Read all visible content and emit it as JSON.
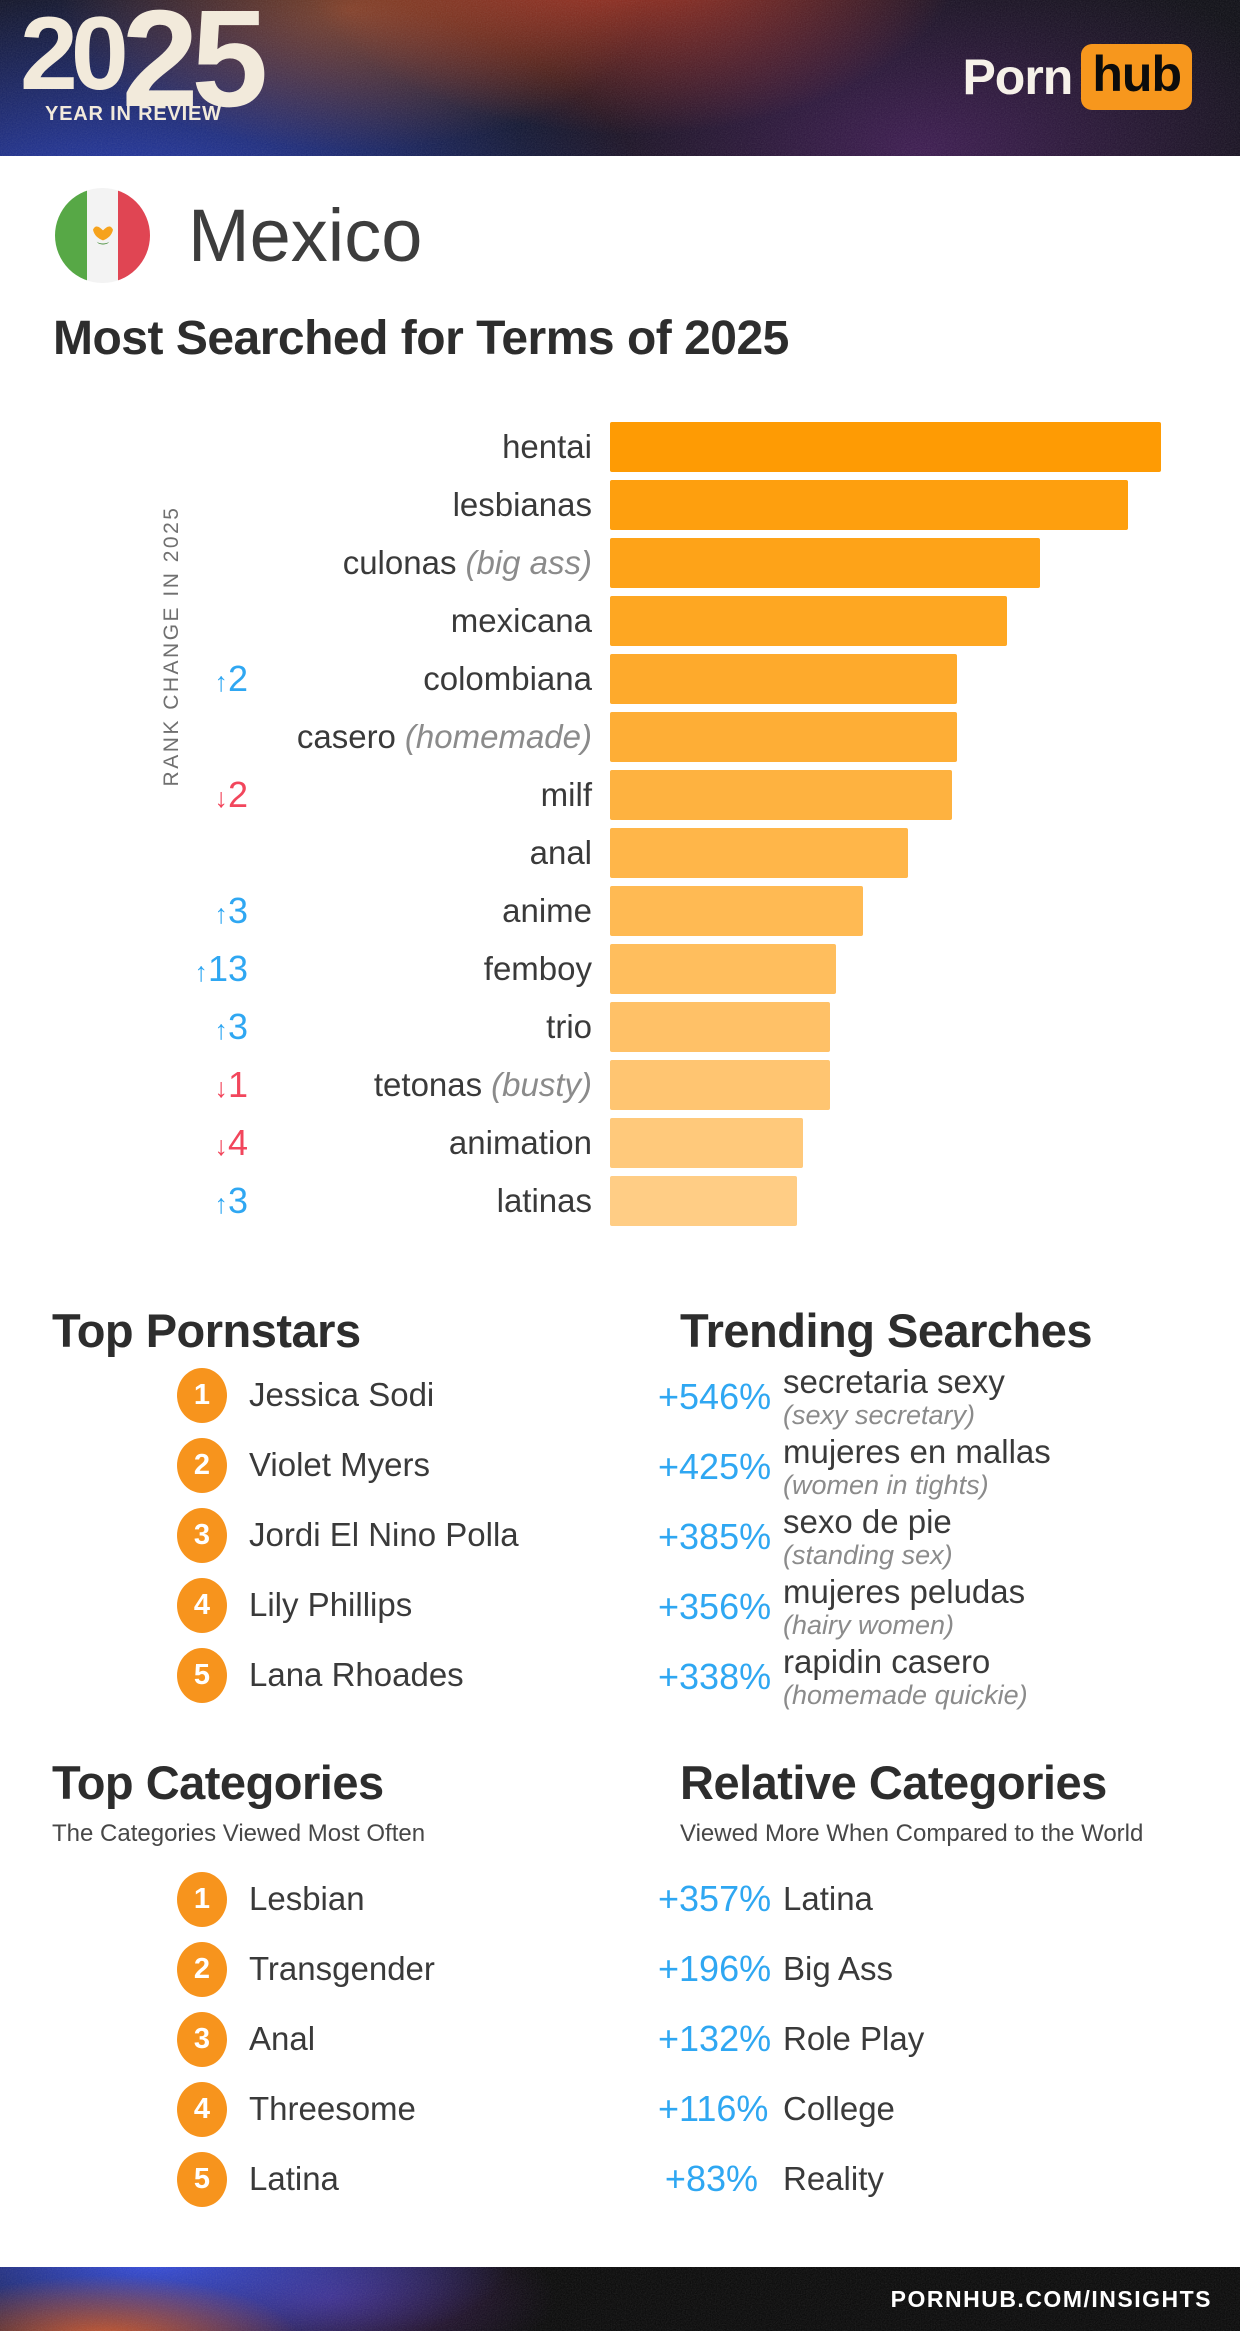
{
  "header": {
    "year_first": "20",
    "year_second": "25",
    "tagline": "YEAR IN REVIEW",
    "brand_first": "Porn",
    "brand_second": "hub"
  },
  "country": {
    "name": "Mexico"
  },
  "page_title": "Most Searched for Terms of 2025",
  "chart_data": {
    "type": "bar",
    "orientation": "horizontal",
    "title": "Most Searched for Terms of 2025",
    "axis_label": "RANK CHANGE IN 2025",
    "value_unit": "relative search volume (top term = 100)",
    "bar_color_top": "#FE9B04",
    "bar_color_bottom": "#FFCD85",
    "rank_up_color": "#2FA7F2",
    "rank_down_color": "#F2465C",
    "categories": [
      "hentai",
      "lesbianas",
      "culonas",
      "mexicana",
      "colombiana",
      "casero",
      "milf",
      "anal",
      "anime",
      "femboy",
      "trio",
      "tetonas",
      "animation",
      "latinas"
    ],
    "values": [
      100,
      94,
      78,
      72,
      63,
      63,
      62,
      54,
      46,
      41,
      40,
      40,
      35,
      34
    ],
    "items": [
      {
        "term": "hentai",
        "translation": "",
        "rank_change": "",
        "value": 100
      },
      {
        "term": "lesbianas",
        "translation": "",
        "rank_change": "",
        "value": 94
      },
      {
        "term": "culonas",
        "translation": "(big ass)",
        "rank_change": "",
        "value": 78
      },
      {
        "term": "mexicana",
        "translation": "",
        "rank_change": "",
        "value": 72
      },
      {
        "term": "colombiana",
        "translation": "",
        "rank_change": "↑2",
        "value": 63
      },
      {
        "term": "casero",
        "translation": "(homemade)",
        "rank_change": "",
        "value": 63
      },
      {
        "term": "milf",
        "translation": "",
        "rank_change": "↓2",
        "value": 62
      },
      {
        "term": "anal",
        "translation": "",
        "rank_change": "",
        "value": 54
      },
      {
        "term": "anime",
        "translation": "",
        "rank_change": "↑3",
        "value": 46
      },
      {
        "term": "femboy",
        "translation": "",
        "rank_change": "↑13",
        "value": 41
      },
      {
        "term": "trio",
        "translation": "",
        "rank_change": "↑3",
        "value": 40
      },
      {
        "term": "tetonas",
        "translation": "(busty)",
        "rank_change": "↓1",
        "value": 40
      },
      {
        "term": "animation",
        "translation": "",
        "rank_change": "↓4",
        "value": 35
      },
      {
        "term": "latinas",
        "translation": "",
        "rank_change": "↑3",
        "value": 34
      }
    ]
  },
  "top_pornstars": {
    "title": "Top Pornstars",
    "items": [
      {
        "rank": 1,
        "name": "Jessica Sodi"
      },
      {
        "rank": 2,
        "name": "Violet Myers"
      },
      {
        "rank": 3,
        "name": "Jordi El Nino Polla"
      },
      {
        "rank": 4,
        "name": "Lily Phillips"
      },
      {
        "rank": 5,
        "name": "Lana Rhoades"
      }
    ]
  },
  "trending_searches": {
    "title": "Trending Searches",
    "items": [
      {
        "pct": "+546%",
        "term": "secretaria sexy",
        "translation": "(sexy secretary)"
      },
      {
        "pct": "+425%",
        "term": "mujeres en mallas",
        "translation": "(women in tights)"
      },
      {
        "pct": "+385%",
        "term": "sexo de pie",
        "translation": "(standing sex)"
      },
      {
        "pct": "+356%",
        "term": "mujeres peludas",
        "translation": "(hairy women)"
      },
      {
        "pct": "+338%",
        "term": "rapidin casero",
        "translation": "(homemade quickie)"
      }
    ]
  },
  "top_categories": {
    "title": "Top Categories",
    "subtitle": "The Categories Viewed Most Often",
    "items": [
      {
        "rank": 1,
        "name": "Lesbian"
      },
      {
        "rank": 2,
        "name": "Transgender"
      },
      {
        "rank": 3,
        "name": "Anal"
      },
      {
        "rank": 4,
        "name": "Threesome"
      },
      {
        "rank": 5,
        "name": "Latina"
      }
    ]
  },
  "relative_categories": {
    "title": "Relative Categories",
    "subtitle": "Viewed More When Compared to the World",
    "items": [
      {
        "pct": "+357%",
        "term": "Latina",
        "translation": ""
      },
      {
        "pct": "+196%",
        "term": "Big Ass",
        "translation": ""
      },
      {
        "pct": "+132%",
        "term": "Role Play",
        "translation": ""
      },
      {
        "pct": "+116%",
        "term": "College",
        "translation": ""
      },
      {
        "pct": "+83%",
        "term": "Reality",
        "translation": ""
      }
    ]
  },
  "footer": {
    "url": "PORNHUB.COM/INSIGHTS"
  },
  "colors": {
    "badge_orange": "#F7941D",
    "brand_orange": "#F7971D",
    "trend_blue": "#2FA7F2",
    "rank_down_red": "#F2465C",
    "heading_dark": "#2D2D2D",
    "flag_green": "#57A846",
    "flag_red": "#E04553"
  }
}
